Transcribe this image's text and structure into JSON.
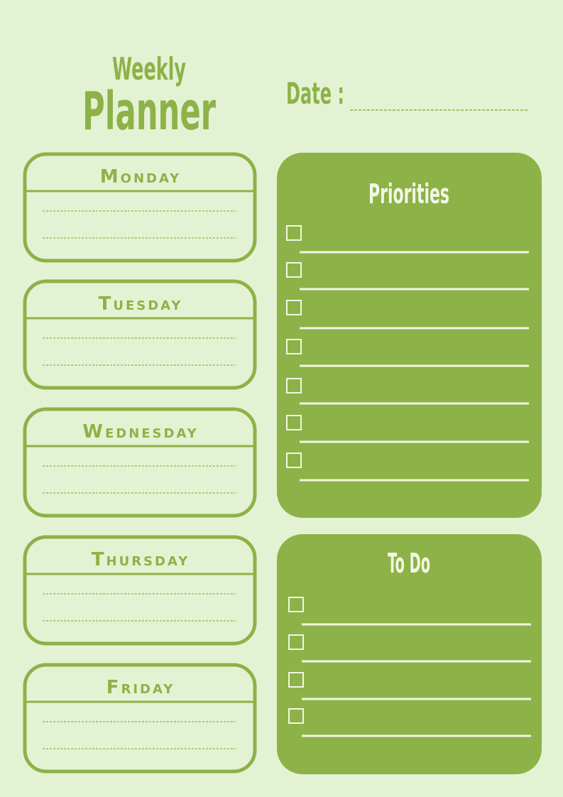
{
  "header": {
    "title_line1": "Weekly",
    "title_line2": "Planner",
    "date_label": "Date :"
  },
  "days": [
    "Monday",
    "Tuesday",
    "Wednesday",
    "Thursday",
    "Friday"
  ],
  "priorities": {
    "title": "Priorities"
  },
  "todo": {
    "title": "To Do"
  }
}
